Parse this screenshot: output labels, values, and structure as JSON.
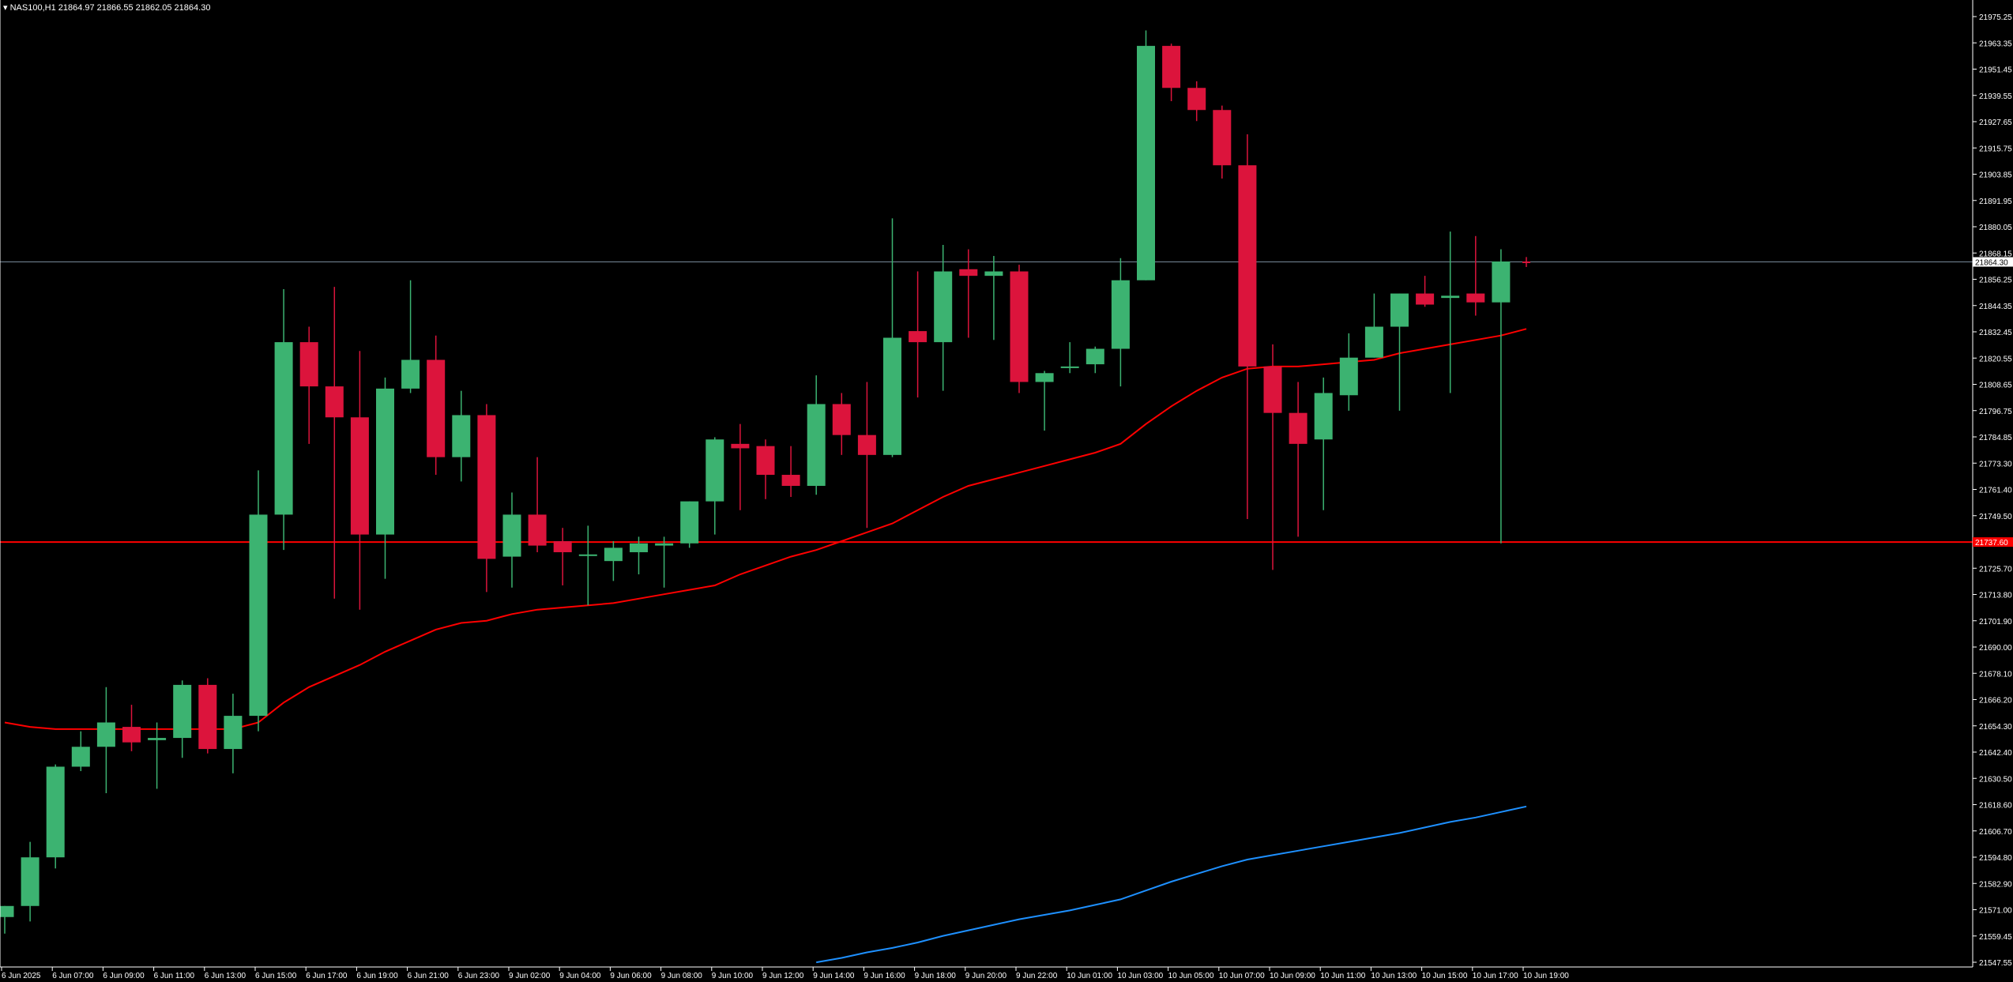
{
  "header": {
    "symbol": "NAS100,H1",
    "quote": "21864.97 21866.55 21862.05 21864.30"
  },
  "colors": {
    "background": "#000000",
    "bull_candle": "#3cb371",
    "bear_candle": "#dc143c",
    "ma_fast": "#ff0000",
    "ma_slow": "#1e90ff",
    "level_line": "#ff0000",
    "bid_line": "#778899",
    "axis": "#ffffff"
  },
  "chart_data": {
    "type": "candlestick",
    "symbol": "NAS100",
    "timeframe": "H1",
    "y_axis": {
      "range": [
        21547.55,
        21975.25
      ],
      "ticks": [
        "21975.25",
        "21963.35",
        "21951.45",
        "21939.55",
        "21927.65",
        "21915.75",
        "21903.85",
        "21891.95",
        "21880.05",
        "21868.15",
        "21856.25",
        "21844.35",
        "21832.45",
        "21820.55",
        "21808.65",
        "21796.75",
        "21784.85",
        "21773.30",
        "21761.40",
        "21749.50",
        "21737.60",
        "21725.70",
        "21713.80",
        "21701.90",
        "21690.00",
        "21678.10",
        "21666.20",
        "21654.30",
        "21642.40",
        "21630.50",
        "21618.60",
        "21606.70",
        "21594.80",
        "21582.90",
        "21571.00",
        "21559.45",
        "21547.55"
      ],
      "current_price_label": "21864.30",
      "level_label": "21737.60"
    },
    "x_axis": {
      "labels": [
        {
          "bar": 0,
          "text": "6 Jun 2025"
        },
        {
          "bar": 2,
          "text": "6 Jun 07:00"
        },
        {
          "bar": 4,
          "text": "6 Jun 09:00"
        },
        {
          "bar": 6,
          "text": "6 Jun 11:00"
        },
        {
          "bar": 8,
          "text": "6 Jun 13:00"
        },
        {
          "bar": 10,
          "text": "6 Jun 15:00"
        },
        {
          "bar": 12,
          "text": "6 Jun 17:00"
        },
        {
          "bar": 14,
          "text": "6 Jun 19:00"
        },
        {
          "bar": 16,
          "text": "6 Jun 21:00"
        },
        {
          "bar": 18,
          "text": "6 Jun 23:00"
        },
        {
          "bar": 20,
          "text": "9 Jun 02:00"
        },
        {
          "bar": 22,
          "text": "9 Jun 04:00"
        },
        {
          "bar": 24,
          "text": "9 Jun 06:00"
        },
        {
          "bar": 26,
          "text": "9 Jun 08:00"
        },
        {
          "bar": 28,
          "text": "9 Jun 10:00"
        },
        {
          "bar": 30,
          "text": "9 Jun 12:00"
        },
        {
          "bar": 32,
          "text": "9 Jun 14:00"
        },
        {
          "bar": 34,
          "text": "9 Jun 16:00"
        },
        {
          "bar": 36,
          "text": "9 Jun 18:00"
        },
        {
          "bar": 38,
          "text": "9 Jun 20:00"
        },
        {
          "bar": 40,
          "text": "9 Jun 22:00"
        },
        {
          "bar": 42,
          "text": "10 Jun 01:00"
        },
        {
          "bar": 44,
          "text": "10 Jun 03:00"
        },
        {
          "bar": 46,
          "text": "10 Jun 05:00"
        },
        {
          "bar": 48,
          "text": "10 Jun 07:00"
        },
        {
          "bar": 50,
          "text": "10 Jun 09:00"
        },
        {
          "bar": 52,
          "text": "10 Jun 11:00"
        },
        {
          "bar": 54,
          "text": "10 Jun 13:00"
        },
        {
          "bar": 56,
          "text": "10 Jun 15:00"
        },
        {
          "bar": 58,
          "text": "10 Jun 17:00"
        },
        {
          "bar": 60,
          "text": "10 Jun 19:00"
        }
      ]
    },
    "candles": [
      {
        "o": 21568.0,
        "h": 21573.0,
        "l": 21560.5,
        "c": 21573.0
      },
      {
        "o": 21573.0,
        "h": 21602.0,
        "l": 21566.0,
        "c": 21595.0
      },
      {
        "o": 21595.0,
        "h": 21637.0,
        "l": 21590.0,
        "c": 21636.0
      },
      {
        "o": 21636.0,
        "h": 21652.0,
        "l": 21634.0,
        "c": 21645.0
      },
      {
        "o": 21645.0,
        "h": 21672.0,
        "l": 21624.0,
        "c": 21656.0
      },
      {
        "o": 21654.0,
        "h": 21664.0,
        "l": 21643.0,
        "c": 21647.0
      },
      {
        "o": 21648.0,
        "h": 21656.0,
        "l": 21626.0,
        "c": 21649.0
      },
      {
        "o": 21649.0,
        "h": 21675.0,
        "l": 21640.0,
        "c": 21673.0
      },
      {
        "o": 21673.0,
        "h": 21676.0,
        "l": 21642.0,
        "c": 21644.0
      },
      {
        "o": 21644.0,
        "h": 21669.0,
        "l": 21633.0,
        "c": 21659.0
      },
      {
        "o": 21659.0,
        "h": 21770.0,
        "l": 21652.0,
        "c": 21750.0
      },
      {
        "o": 21750.0,
        "h": 21852.0,
        "l": 21734.0,
        "c": 21828.0
      },
      {
        "o": 21828.0,
        "h": 21835.0,
        "l": 21782.0,
        "c": 21808.0
      },
      {
        "o": 21808.0,
        "h": 21853.0,
        "l": 21712.0,
        "c": 21794.0
      },
      {
        "o": 21794.0,
        "h": 21824.0,
        "l": 21707.0,
        "c": 21741.0
      },
      {
        "o": 21741.0,
        "h": 21812.0,
        "l": 21721.0,
        "c": 21807.0
      },
      {
        "o": 21807.0,
        "h": 21856.0,
        "l": 21805.0,
        "c": 21820.0
      },
      {
        "o": 21820.0,
        "h": 21831.0,
        "l": 21768.0,
        "c": 21776.0
      },
      {
        "o": 21776.0,
        "h": 21806.0,
        "l": 21765.0,
        "c": 21795.0
      },
      {
        "o": 21795.0,
        "h": 21800.0,
        "l": 21715.0,
        "c": 21730.0
      },
      {
        "o": 21731.0,
        "h": 21760.0,
        "l": 21717.0,
        "c": 21750.0
      },
      {
        "o": 21750.0,
        "h": 21776.0,
        "l": 21733.0,
        "c": 21736.0
      },
      {
        "o": 21738.0,
        "h": 21744.0,
        "l": 21718.0,
        "c": 21733.0
      },
      {
        "o": 21732.0,
        "h": 21745.0,
        "l": 21709.0,
        "c": 21732.0
      },
      {
        "o": 21729.0,
        "h": 21738.0,
        "l": 21720.0,
        "c": 21735.0
      },
      {
        "o": 21733.0,
        "h": 21740.0,
        "l": 21723.0,
        "c": 21737.0
      },
      {
        "o": 21736.0,
        "h": 21740.0,
        "l": 21717.0,
        "c": 21737.0
      },
      {
        "o": 21737.0,
        "h": 21756.0,
        "l": 21735.0,
        "c": 21756.0
      },
      {
        "o": 21756.0,
        "h": 21785.0,
        "l": 21741.0,
        "c": 21784.0
      },
      {
        "o": 21782.0,
        "h": 21791.0,
        "l": 21752.0,
        "c": 21780.0
      },
      {
        "o": 21781.0,
        "h": 21784.0,
        "l": 21757.0,
        "c": 21768.0
      },
      {
        "o": 21768.0,
        "h": 21781.0,
        "l": 21758.0,
        "c": 21763.0
      },
      {
        "o": 21763.0,
        "h": 21813.0,
        "l": 21759.0,
        "c": 21800.0
      },
      {
        "o": 21800.0,
        "h": 21805.0,
        "l": 21777.0,
        "c": 21786.0
      },
      {
        "o": 21786.0,
        "h": 21810.0,
        "l": 21744.0,
        "c": 21777.0
      },
      {
        "o": 21777.0,
        "h": 21884.0,
        "l": 21776.0,
        "c": 21830.0
      },
      {
        "o": 21833.0,
        "h": 21860.0,
        "l": 21803.0,
        "c": 21828.0
      },
      {
        "o": 21828.0,
        "h": 21872.0,
        "l": 21806.0,
        "c": 21860.0
      },
      {
        "o": 21861.0,
        "h": 21870.0,
        "l": 21830.0,
        "c": 21858.0
      },
      {
        "o": 21858.0,
        "h": 21867.0,
        "l": 21829.0,
        "c": 21860.0
      },
      {
        "o": 21860.0,
        "h": 21863.0,
        "l": 21805.0,
        "c": 21810.0
      },
      {
        "o": 21810.0,
        "h": 21815.0,
        "l": 21788.0,
        "c": 21814.0
      },
      {
        "o": 21817.0,
        "h": 21828.0,
        "l": 21814.0,
        "c": 21817.0
      },
      {
        "o": 21818.0,
        "h": 21826.0,
        "l": 21814.0,
        "c": 21825.0
      },
      {
        "o": 21825.0,
        "h": 21866.0,
        "l": 21808.0,
        "c": 21856.0
      },
      {
        "o": 21856.0,
        "h": 21969.0,
        "l": 21856.0,
        "c": 21962.0
      },
      {
        "o": 21962.0,
        "h": 21963.0,
        "l": 21937.0,
        "c": 21943.0
      },
      {
        "o": 21943.0,
        "h": 21946.0,
        "l": 21928.0,
        "c": 21933.0
      },
      {
        "o": 21933.0,
        "h": 21935.0,
        "l": 21902.0,
        "c": 21908.0
      },
      {
        "o": 21908.0,
        "h": 21922.0,
        "l": 21748.0,
        "c": 21817.0
      },
      {
        "o": 21817.0,
        "h": 21827.0,
        "l": 21725.0,
        "c": 21796.0
      },
      {
        "o": 21796.0,
        "h": 21810.0,
        "l": 21740.0,
        "c": 21782.0
      },
      {
        "o": 21784.0,
        "h": 21812.0,
        "l": 21752.0,
        "c": 21805.0
      },
      {
        "o": 21804.0,
        "h": 21832.0,
        "l": 21797.0,
        "c": 21821.0
      },
      {
        "o": 21821.0,
        "h": 21850.0,
        "l": 21821.0,
        "c": 21835.0
      },
      {
        "o": 21835.0,
        "h": 21850.0,
        "l": 21797.0,
        "c": 21850.0
      },
      {
        "o": 21850.0,
        "h": 21858.0,
        "l": 21844.0,
        "c": 21845.0
      },
      {
        "o": 21848.0,
        "h": 21878.0,
        "l": 21805.0,
        "c": 21849.0
      },
      {
        "o": 21850.0,
        "h": 21876.0,
        "l": 21840.0,
        "c": 21846.0
      },
      {
        "o": 21846.0,
        "h": 21870.0,
        "l": 21737.0,
        "c": 21864.5
      },
      {
        "o": 21864.5,
        "h": 21866.5,
        "l": 21862.0,
        "c": 21864.3
      }
    ],
    "series": [
      {
        "color": "#ff0000",
        "values": [
          21656,
          21654,
          21653,
          21653,
          21653,
          21653,
          21653,
          21653,
          21653,
          21653,
          21656,
          21665,
          21672,
          21677,
          21682,
          21688,
          21693,
          21698,
          21701,
          21702,
          21705,
          21707,
          21708,
          21709,
          21710,
          21712,
          21714,
          21716,
          21718,
          21723,
          21727,
          21731,
          21734,
          21738,
          21742,
          21746,
          21752,
          21758,
          21763,
          21766,
          21769,
          21772,
          21775,
          21778,
          21782,
          21791,
          21799,
          21806,
          21812,
          21816,
          21817,
          21817,
          21818,
          21819,
          21820,
          21823,
          21825,
          21827,
          21829,
          21831,
          21834
        ]
      },
      {
        "color": "#1e90ff",
        "values": [
          null,
          null,
          null,
          null,
          null,
          null,
          null,
          null,
          null,
          null,
          null,
          null,
          null,
          null,
          null,
          null,
          null,
          null,
          null,
          null,
          null,
          null,
          null,
          null,
          null,
          null,
          null,
          null,
          null,
          null,
          null,
          null,
          21547.5,
          21549.5,
          21552,
          21554,
          21556.5,
          21559.5,
          21562,
          21564.5,
          21567,
          21569,
          21571,
          21573.5,
          21576,
          21580,
          21584,
          21587.5,
          21591,
          21594,
          21596,
          21598,
          21600,
          21602,
          21604,
          21606,
          21608.5,
          21611,
          21613,
          21615.5,
          21618
        ]
      }
    ],
    "horizontal_lines": [
      {
        "value": 21737.6,
        "color": "#ff0000"
      },
      {
        "value": 21864.3,
        "color": "#778899"
      }
    ]
  }
}
